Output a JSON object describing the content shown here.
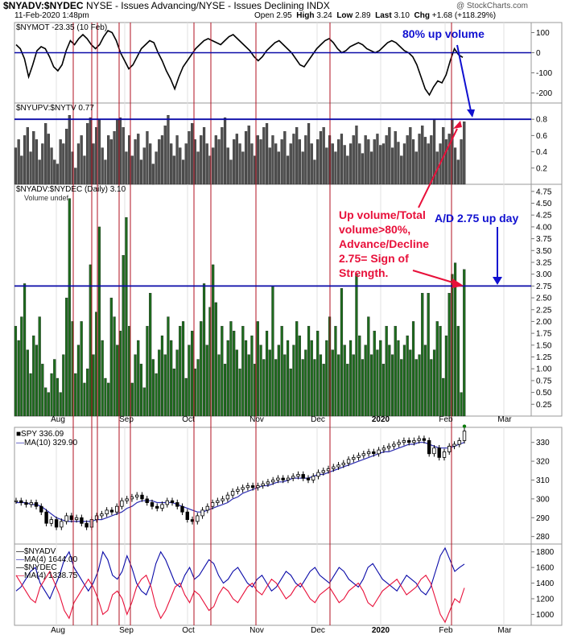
{
  "header": {
    "symbol": "$NYADV:$NYDEC",
    "description": "NYSE - Issues Advancing/NYSE - Issues Declining INDX",
    "date": "11-Feb-2020 1:48pm",
    "open_label": "Open",
    "open": "2.95",
    "high_label": "High",
    "high": "3.24",
    "low_label": "Low",
    "low": "2.89",
    "last_label": "Last",
    "last": "3.10",
    "chg_label": "Chg",
    "chg": "+1.68 (+118.29%)",
    "brand": "@ StockCharts.com"
  },
  "panels": {
    "nymot": {
      "label": "$NYMOT -23.35 (10 Feb)",
      "ticks": [
        "100",
        "0",
        "-100",
        "-200"
      ]
    },
    "upv": {
      "label": "$NYUPV:$NYTV 0.77",
      "ticks": [
        "0.8",
        "0.6",
        "0.4",
        "0.2"
      ]
    },
    "main": {
      "label": "$NYADV:$NYDEC (Daily) 3.10",
      "sublabel": "Volume undef",
      "ticks": [
        "4.75",
        "4.50",
        "4.25",
        "4.00",
        "3.75",
        "3.50",
        "3.25",
        "3.00",
        "2.75",
        "2.50",
        "2.25",
        "2.00",
        "1.75",
        "1.50",
        "1.25",
        "1.00",
        "0.75",
        "0.50",
        "0.25"
      ]
    },
    "spy": {
      "label": "SPY 336.09",
      "ma_label": "MA(10) 329.90",
      "ticks": [
        "330",
        "320",
        "310",
        "300",
        "290",
        "280"
      ]
    },
    "breadth": {
      "label": "$NYADV",
      "ma1_label": "MA(4) 1644.00",
      "label2": "$NYDEC",
      "ma2_label": "MA(4) 1338.75",
      "ticks": [
        "1800",
        "1600",
        "1400",
        "1200",
        "1000"
      ]
    }
  },
  "x_axis": {
    "months": [
      "Aug",
      "Sep",
      "Oct",
      "Nov",
      "Dec",
      "2020",
      "Feb",
      "Mar"
    ]
  },
  "annotations": {
    "up_volume": "80% up volume",
    "ad_up_day": "A/D 2.75 up day",
    "strength_lines": [
      "Up volume/Total",
      "volume>80%,",
      "Advance/Decline",
      "2.75= Sign of",
      "Strength."
    ]
  },
  "colors": {
    "bar_green": "#1e6b1e",
    "bar_gray": "#505050",
    "ref_line": "#0a0aa8",
    "marker_line": "#b01020",
    "annot_red": "#e8103a",
    "annot_blue": "#1010d0",
    "spy_ma": "#2b2bb0"
  },
  "chart_data": [
    {
      "type": "line",
      "title": "$NYMOT -23.35 (10 Feb)",
      "ylim": [
        -250,
        150
      ],
      "reference_line": 0,
      "values": [
        40,
        20,
        -30,
        -120,
        -60,
        10,
        30,
        20,
        -20,
        -70,
        -90,
        -60,
        10,
        60,
        40,
        70,
        90,
        70,
        40,
        20,
        40,
        80,
        110,
        100,
        60,
        0,
        -40,
        -80,
        -60,
        -20,
        20,
        40,
        60,
        50,
        0,
        -40,
        -90,
        -130,
        -180,
        -120,
        -70,
        -40,
        -10,
        20,
        40,
        60,
        70,
        60,
        50,
        40,
        60,
        80,
        90,
        70,
        50,
        30,
        10,
        -20,
        -40,
        -20,
        10,
        30,
        50,
        60,
        40,
        20,
        0,
        -30,
        -60,
        -70,
        -40,
        -10,
        20,
        40,
        60,
        70,
        50,
        20,
        0,
        10,
        30,
        40,
        50,
        40,
        20,
        10,
        0,
        10,
        30,
        50,
        60,
        50,
        30,
        10,
        0,
        -20,
        -60,
        -120,
        -180,
        -210,
        -170,
        -140,
        -150,
        -110,
        -40,
        20,
        -10,
        -23
      ]
    },
    {
      "type": "bar",
      "title": "$NYUPV:$NYTV 0.77",
      "ylim": [
        0,
        1.0
      ],
      "reference_line": 0.8,
      "values": [
        0.45,
        0.55,
        0.35,
        0.6,
        0.7,
        0.4,
        0.65,
        0.55,
        0.3,
        0.5,
        0.75,
        0.62,
        0.45,
        0.3,
        0.25,
        0.55,
        0.5,
        0.68,
        0.85,
        0.4,
        0.2,
        0.5,
        0.6,
        0.35,
        0.75,
        0.82,
        0.5,
        0.7,
        0.8,
        0.45,
        0.3,
        0.6,
        0.55,
        0.65,
        0.8,
        0.82,
        0.7,
        0.4,
        0.6,
        0.35,
        0.55,
        0.62,
        0.3,
        0.45,
        0.65,
        0.5,
        0.25,
        0.4,
        0.55,
        0.6,
        0.72,
        0.85,
        0.5,
        0.35,
        0.6,
        0.45,
        0.3,
        0.5,
        0.65,
        0.75,
        0.55,
        0.4,
        0.6,
        0.7,
        0.5,
        0.35,
        0.45,
        0.6,
        0.55,
        0.7,
        0.82,
        0.45,
        0.3,
        0.55,
        0.62,
        0.5,
        0.4,
        0.65,
        0.72,
        0.5,
        0.35,
        0.6,
        0.55,
        0.7,
        0.75,
        0.45,
        0.6,
        0.5,
        0.4,
        0.55,
        0.65,
        0.35,
        0.5,
        0.62,
        0.7,
        0.55,
        0.4,
        0.6,
        0.75,
        0.5,
        0.3,
        0.55,
        0.65,
        0.7,
        0.45,
        0.6,
        0.5,
        0.4,
        0.55,
        0.62,
        0.48,
        0.35,
        0.5,
        0.6,
        0.72,
        0.5,
        0.38,
        0.6,
        0.55,
        0.4,
        0.55,
        0.62,
        0.48,
        0.5,
        0.6,
        0.7,
        0.45,
        0.65,
        0.52,
        0.35,
        0.5,
        0.6,
        0.7,
        0.55,
        0.4,
        0.62,
        0.72,
        0.58,
        0.5,
        0.6,
        0.8,
        0.4,
        0.5,
        0.7,
        0.55,
        0.62,
        0.8,
        0.45,
        0.3,
        0.55,
        0.77
      ]
    },
    {
      "type": "bar",
      "title": "$NYADV:$NYDEC (Daily) 3.10",
      "ylim": [
        0,
        4.9
      ],
      "reference_line": 2.75,
      "values": [
        1.9,
        1.6,
        2.1,
        2.8,
        1.4,
        0.9,
        1.7,
        1.5,
        2.1,
        1.1,
        0.6,
        0.5,
        0.9,
        1.2,
        0.8,
        0.5,
        1.3,
        2.5,
        4.6,
        2.0,
        0.9,
        1.5,
        2.0,
        0.7,
        1.0,
        3.2,
        1.3,
        2.2,
        4.0,
        1.6,
        0.8,
        0.7,
        2.5,
        2.1,
        1.5,
        1.8,
        3.4,
        4.2,
        1.9,
        0.7,
        1.3,
        1.6,
        1.1,
        0.6,
        1.9,
        2.6,
        1.2,
        0.9,
        1.4,
        1.7,
        1.3,
        2.1,
        1.6,
        1.0,
        1.4,
        1.9,
        2.0,
        0.8,
        1.5,
        1.8,
        1.0,
        1.2,
        2.0,
        2.8,
        1.5,
        2.3,
        3.2,
        2.4,
        1.3,
        1.9,
        1.1,
        1.6,
        2.0,
        1.8,
        1.4,
        1.0,
        1.9,
        1.6,
        1.3,
        1.7,
        1.1,
        2.0,
        1.5,
        1.2,
        1.8,
        1.4,
        2.75,
        1.2,
        1.5,
        1.9,
        1.3,
        1.6,
        1.0,
        1.5,
        2.0,
        1.7,
        1.2,
        1.4,
        1.9,
        1.6,
        1.2,
        1.8,
        1.3,
        1.1,
        1.6,
        2.1,
        1.4,
        1.9,
        1.3,
        2.7,
        1.5,
        1.1,
        1.6,
        1.3,
        3.0,
        1.7,
        1.2,
        1.5,
        2.1,
        1.3,
        1.8,
        1.4,
        1.6,
        1.1,
        1.9,
        1.5,
        1.3,
        1.9,
        1.6,
        1.2,
        1.5,
        1.7,
        1.4,
        2.0,
        1.2,
        1.3,
        2.6,
        1.5,
        2.6,
        1.2,
        1.4,
        2.0,
        1.9,
        0.8,
        1.7,
        2.6,
        3.0,
        3.24,
        1.9,
        0.5,
        3.1
      ]
    },
    {
      "type": "line",
      "title": "SPY 336.09",
      "ylim": [
        276,
        338
      ],
      "series": [
        {
          "name": "SPY 336.09",
          "values": [
            299,
            298,
            297,
            298,
            296,
            293,
            287,
            289,
            285,
            288,
            291,
            289,
            290,
            287,
            285,
            289,
            291,
            292,
            294,
            293,
            296,
            299,
            300,
            301,
            302,
            300,
            298,
            296,
            295,
            297,
            299,
            298,
            296,
            293,
            289,
            288,
            291,
            294,
            296,
            298,
            299,
            300,
            302,
            304,
            305,
            306,
            307,
            306,
            307,
            308,
            309,
            310,
            311,
            310,
            311,
            312,
            313,
            311,
            310,
            312,
            314,
            315,
            316,
            317,
            318,
            319,
            321,
            322,
            323,
            324,
            325,
            324,
            326,
            327,
            328,
            329,
            330,
            331,
            330,
            331,
            332,
            331,
            324,
            327,
            322,
            325,
            328,
            329,
            331,
            336
          ]
        },
        {
          "name": "MA(10) 329.90",
          "values": [
            298,
            298,
            298,
            297,
            297,
            296,
            294,
            292,
            290,
            289,
            288,
            288,
            288,
            288,
            288,
            288,
            289,
            289,
            290,
            291,
            292,
            293,
            295,
            296,
            298,
            299,
            299,
            299,
            298,
            298,
            298,
            298,
            297,
            296,
            295,
            294,
            293,
            293,
            294,
            295,
            296,
            297,
            298,
            300,
            301,
            303,
            304,
            305,
            306,
            307,
            307,
            308,
            309,
            309,
            310,
            311,
            311,
            311,
            311,
            312,
            313,
            313,
            314,
            315,
            316,
            317,
            318,
            319,
            320,
            321,
            322,
            323,
            324,
            325,
            325,
            326,
            327,
            328,
            329,
            329,
            330,
            330,
            329,
            328,
            327,
            327,
            327,
            328,
            329,
            330
          ]
        }
      ]
    },
    {
      "type": "line",
      "title": "$NYADV",
      "ylim": [
        860,
        1900
      ],
      "series": [
        {
          "name": "MA(4) 1644.00",
          "values": [
            1300,
            1350,
            1450,
            1550,
            1600,
            1400,
            1300,
            1200,
            1350,
            1500,
            1700,
            1800,
            1600,
            1500,
            1400,
            1300,
            1400,
            1550,
            1800,
            1700,
            1500,
            1450,
            1550,
            1750,
            1600,
            1400,
            1300,
            1250,
            1400,
            1650,
            1800,
            1700,
            1550,
            1400,
            1350,
            1500,
            1600,
            1450,
            1500,
            1600,
            1700,
            1650,
            1500,
            1400,
            1450,
            1550,
            1600,
            1500,
            1400,
            1350,
            1450,
            1500,
            1400,
            1300,
            1350,
            1450,
            1550,
            1500,
            1400,
            1350,
            1450,
            1550,
            1600,
            1500,
            1450,
            1400,
            1500,
            1600,
            1550,
            1450,
            1400,
            1350,
            1450,
            1600,
            1650,
            1550,
            1450,
            1400,
            1350,
            1300,
            1400,
            1500,
            1450,
            1400,
            1300,
            1250,
            1350,
            1550,
            1750,
            1850,
            1700,
            1550,
            1600,
            1644
          ]
        },
        {
          "name": "MA(4) 1338.75",
          "values": [
            1500,
            1400,
            1300,
            1200,
            1150,
            1350,
            1450,
            1550,
            1400,
            1250,
            1050,
            950,
            1150,
            1250,
            1350,
            1450,
            1350,
            1200,
            1000,
            1050,
            1250,
            1300,
            1200,
            1000,
            1150,
            1350,
            1450,
            1500,
            1350,
            1100,
            950,
            1050,
            1200,
            1350,
            1400,
            1250,
            1150,
            1300,
            1250,
            1150,
            1050,
            1100,
            1250,
            1350,
            1300,
            1200,
            1150,
            1250,
            1350,
            1400,
            1300,
            1250,
            1350,
            1450,
            1400,
            1300,
            1200,
            1250,
            1350,
            1400,
            1300,
            1200,
            1150,
            1250,
            1300,
            1350,
            1250,
            1150,
            1200,
            1300,
            1350,
            1400,
            1300,
            1150,
            1100,
            1200,
            1300,
            1350,
            1400,
            1450,
            1350,
            1250,
            1300,
            1350,
            1450,
            1500,
            1400,
            1200,
            1000,
            900,
            1050,
            1200,
            1150,
            1339
          ]
        }
      ]
    }
  ]
}
